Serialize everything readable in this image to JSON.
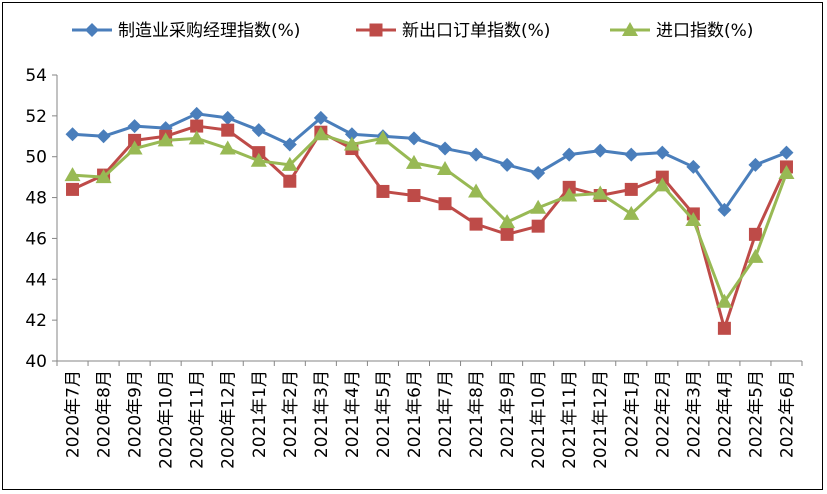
{
  "chart_data": {
    "type": "line",
    "title": "",
    "xlabel": "",
    "ylabel": "",
    "ylim": [
      40,
      54
    ],
    "yticks": [
      "40",
      "42",
      "44",
      "46",
      "48",
      "50",
      "52",
      "54"
    ],
    "grid": false,
    "legend_position": "top",
    "categories": [
      "2020年7月",
      "2020年8月",
      "2020年9月",
      "2020年10月",
      "2020年11月",
      "2020年12月",
      "2021年1月",
      "2021年2月",
      "2021年3月",
      "2021年4月",
      "2021年5月",
      "2021年6月",
      "2021年7月",
      "2021年8月",
      "2021年9月",
      "2021年10月",
      "2021年11月",
      "2021年12月",
      "2022年1月",
      "2022年2月",
      "2022年3月",
      "2022年4月",
      "2022年5月",
      "2022年6月"
    ],
    "series": [
      {
        "name": "制造业采购经理指数(%)",
        "color": "#4a7ebb",
        "marker": "diamond",
        "values": [
          51.1,
          51.0,
          51.5,
          51.4,
          52.1,
          51.9,
          51.3,
          50.6,
          51.9,
          51.1,
          51.0,
          50.9,
          50.4,
          50.1,
          49.6,
          49.2,
          50.1,
          50.3,
          50.1,
          50.2,
          49.5,
          47.4,
          49.6,
          50.2
        ]
      },
      {
        "name": "新出口订单指数(%)",
        "color": "#be4b48",
        "marker": "square",
        "values": [
          48.4,
          49.1,
          50.8,
          51.0,
          51.5,
          51.3,
          50.2,
          48.8,
          51.2,
          50.4,
          48.3,
          48.1,
          47.7,
          46.7,
          46.2,
          46.6,
          48.5,
          48.1,
          48.4,
          49.0,
          47.2,
          41.6,
          46.2,
          49.5
        ]
      },
      {
        "name": "进口指数(%)",
        "color": "#98b954",
        "marker": "triangle",
        "values": [
          49.1,
          49.0,
          50.4,
          50.8,
          50.9,
          50.4,
          49.8,
          49.6,
          51.1,
          50.6,
          50.9,
          49.7,
          49.4,
          48.3,
          46.8,
          47.5,
          48.1,
          48.2,
          47.2,
          48.6,
          46.9,
          42.9,
          45.1,
          49.2
        ]
      }
    ]
  }
}
